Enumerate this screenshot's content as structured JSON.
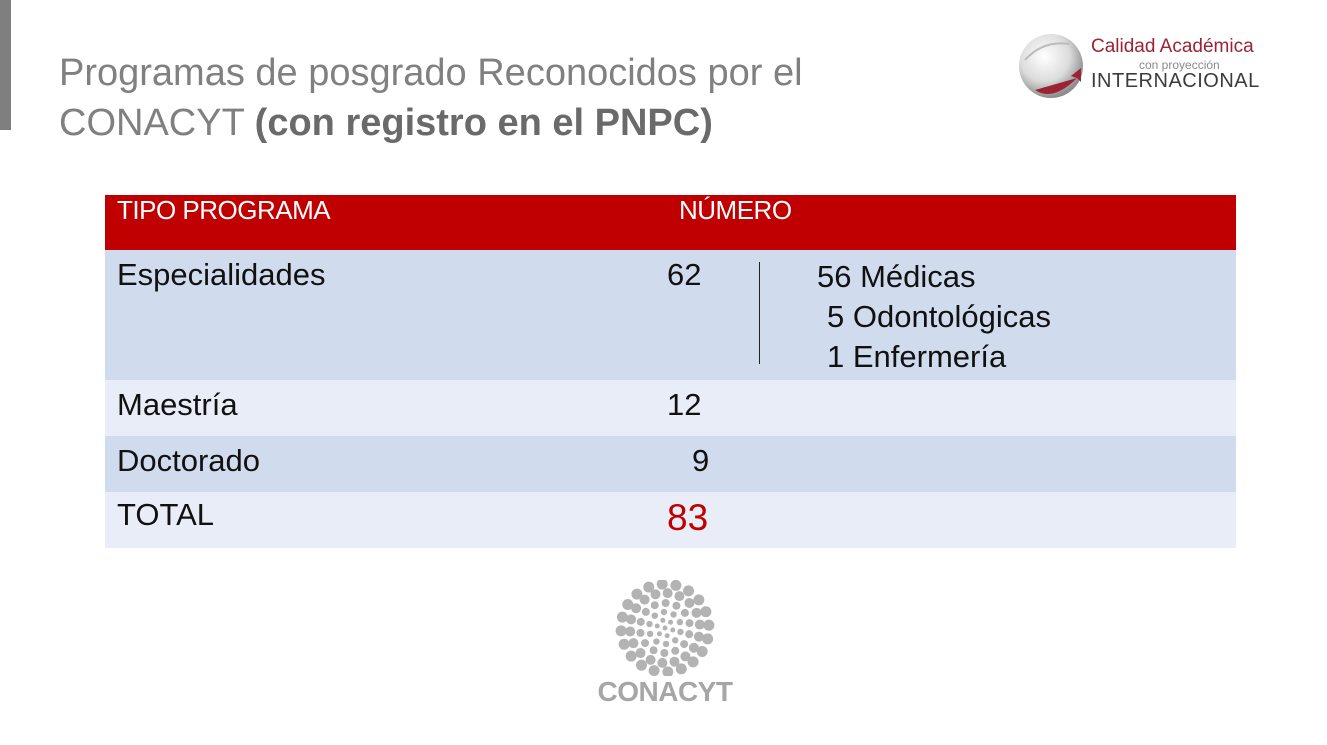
{
  "title": {
    "line1": "Programas de posgrado Reconocidos por el",
    "line2_plain": "CONACYT",
    "line2_bold": "(con registro en el PNPC)"
  },
  "brand": {
    "line1": "Calidad Académica",
    "line2": "con proyección",
    "line3": "INTERNACIONAL",
    "accent_color": "#9b2335"
  },
  "table": {
    "headers": [
      "TIPO PROGRAMA",
      "NÚMERO"
    ],
    "header_color": "#c00000",
    "rows": [
      {
        "tipo": "Especialidades",
        "numero": "62",
        "detalle": [
          "56 Médicas",
          "5 Odontológicas",
          "1 Enfermería"
        ]
      },
      {
        "tipo": "Maestría",
        "numero": "12"
      },
      {
        "tipo": "Doctorado",
        "numero": "9"
      },
      {
        "tipo": "TOTAL",
        "numero": "83"
      }
    ]
  },
  "logo": {
    "name": "CONACYT",
    "icon": "dot-circle-logo-icon"
  }
}
